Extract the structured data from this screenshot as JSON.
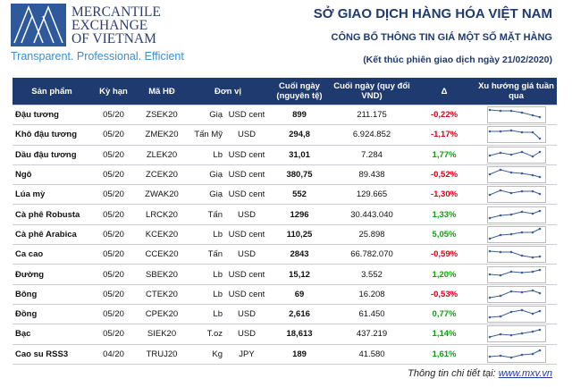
{
  "header": {
    "logo_lines": [
      "MERCANTILE",
      "EXCHANGE",
      "OF VIETNAM"
    ],
    "tagline": "Transparent. Professional. Efficient",
    "title": "SỞ GIAO DỊCH HÀNG HÓA VIỆT NAM",
    "subtitle": "CÔNG BỐ THÔNG TIN GIÁ MỘT SỐ MẶT HÀNG",
    "session": "(Kết thúc phiên giao dịch ngày 21/02/2020)"
  },
  "table": {
    "header": [
      "Sản phẩm",
      "Kỳ hạn",
      "Mã HĐ",
      "Đơn vị",
      "Cuối ngày (nguyên tệ)",
      "Cuối ngày (quy đổi VND)",
      "Δ",
      "Xu hướng giá tuần qua"
    ],
    "rows": [
      [
        "Đậu tương",
        "05/20",
        "ZSEK20",
        "Giạ",
        "USD cent",
        "899",
        "211.175",
        "-0,22%"
      ],
      [
        "Khô đậu tương",
        "05/20",
        "ZMEK20",
        "Tấn Mỹ",
        "USD",
        "294,8",
        "6.924.852",
        "-1,17%"
      ],
      [
        "Dầu đậu tương",
        "05/20",
        "ZLEK20",
        "Lb",
        "USD cent",
        "31,01",
        "7.284",
        "1,77%"
      ],
      [
        "Ngô",
        "05/20",
        "ZCEK20",
        "Giạ",
        "USD cent",
        "380,75",
        "89.438",
        "-0,52%"
      ],
      [
        "Lúa mỳ",
        "05/20",
        "ZWAK20",
        "Giạ",
        "USD cent",
        "552",
        "129.665",
        "-1,30%"
      ],
      [
        "Cà phê Robusta",
        "05/20",
        "LRCK20",
        "Tấn",
        "USD",
        "1296",
        "30.443.040",
        "1,33%"
      ],
      [
        "Cà phê Arabica",
        "05/20",
        "KCEK20",
        "Lb",
        "USD cent",
        "110,25",
        "25.898",
        "5,05%"
      ],
      [
        "Ca cao",
        "05/20",
        "CCEK20",
        "Tấn",
        "USD",
        "2843",
        "66.782.070",
        "-0,59%"
      ],
      [
        "Đường",
        "05/20",
        "SBEK20",
        "Lb",
        "USD cent",
        "15,12",
        "3.552",
        "1,20%"
      ],
      [
        "Bông",
        "05/20",
        "CTEK20",
        "Lb",
        "USD cent",
        "69",
        "16.208",
        "-0,53%"
      ],
      [
        "Đồng",
        "05/20",
        "CPEK20",
        "Lb",
        "USD",
        "2,616",
        "61.450",
        "0,77%"
      ],
      [
        "Bạc",
        "05/20",
        "SIEK20",
        "T.oz",
        "USD",
        "18,613",
        "437.219",
        "1,14%"
      ],
      [
        "Cao su RSS3",
        "04/20",
        "TRUJ20",
        "Kg",
        "JPY",
        "189",
        "41.580",
        "1,61%"
      ]
    ]
  },
  "footer": {
    "label": "Thông tin chi tiết tại:",
    "link": "www.mxv.vn"
  }
}
